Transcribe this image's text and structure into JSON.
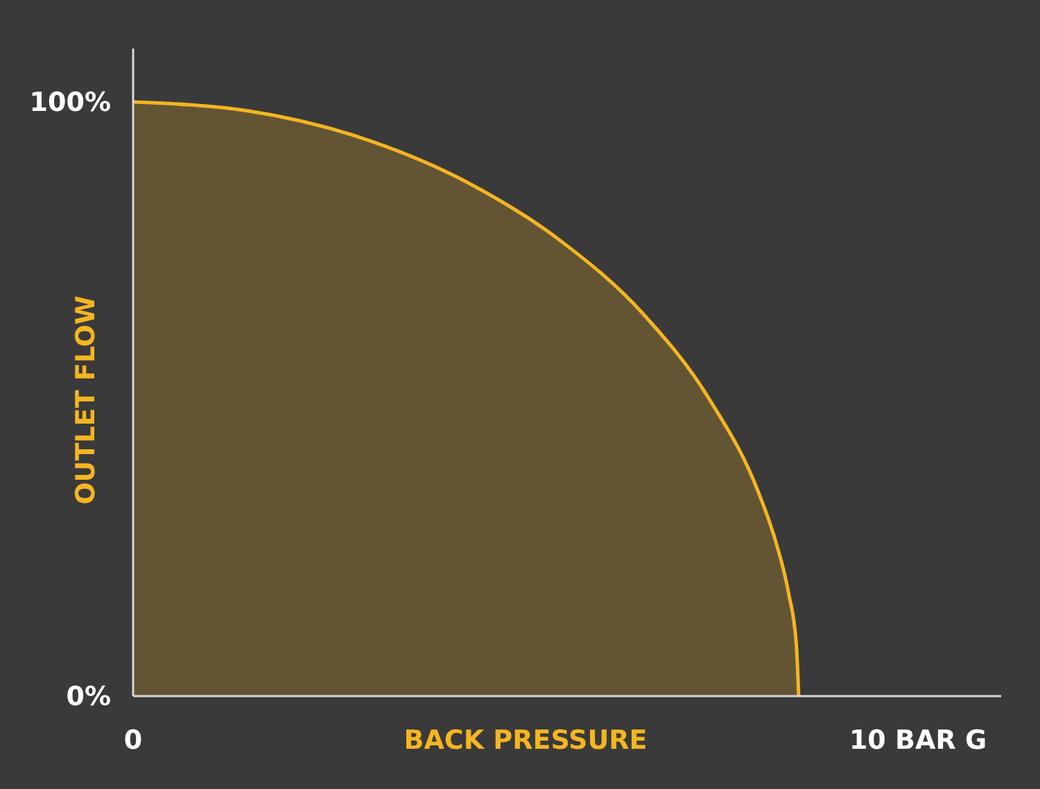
{
  "chart_data": {
    "type": "area",
    "xlabel": "BACK PRESSURE",
    "ylabel": "OUTLET FLOW",
    "x": [
      0,
      1.47,
      2.9,
      4.24,
      5.45,
      6.5,
      7.34,
      7.97,
      8.19,
      8.35,
      8.45,
      8.48
    ],
    "series": [
      {
        "color": "#f5b521",
        "values": [
          100,
          98.5,
          94,
          86.6,
          76.6,
          64.3,
          50,
          34.2,
          25.9,
          17.4,
          8.7,
          0
        ]
      }
    ],
    "xlim": [
      0,
      11.06
    ],
    "ylim": [
      0,
      109
    ],
    "xticks": [
      0,
      {
        "value": 10,
        "label": "10 BAR G"
      }
    ],
    "yticks": [
      {
        "value": 0,
        "label": "0%"
      },
      {
        "value": 100,
        "label": "100%"
      }
    ]
  }
}
